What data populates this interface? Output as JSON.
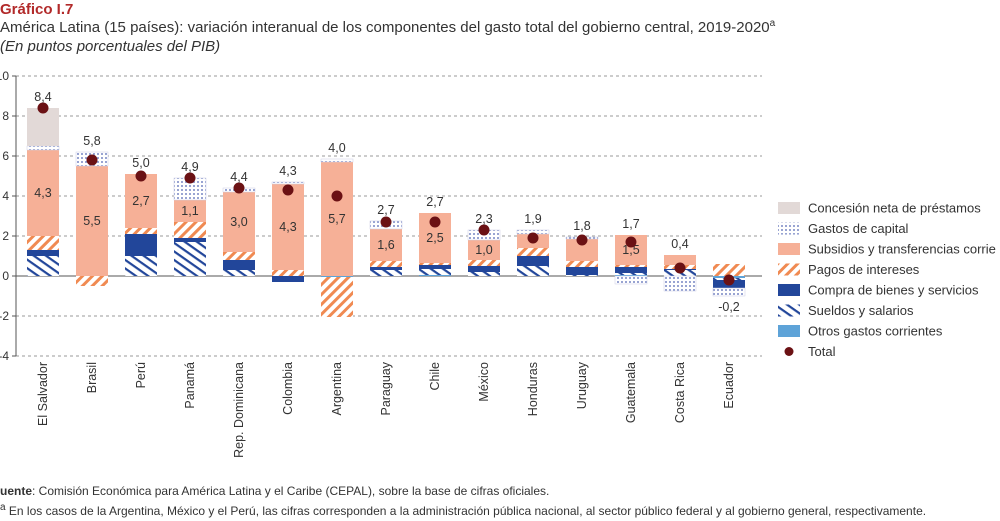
{
  "header": {
    "label": "Gráfico I.7",
    "subtitle": "América Latina (15 países): variación interanual de los componentes del gasto total del gobierno central, 2019-2020",
    "subtitle_sup": "a",
    "units": "(En puntos porcentuales del PIB)"
  },
  "footer": {
    "source_label": "uente",
    "source_text": ": Comisión Económica para América Latina y el Caribe (CEPAL), sobre la base de cifras oficiales.",
    "note": "En los casos de la Argentina, México y el Perú, las cifras corresponden a la administración pública nacional, al sector público federal y al gobierno general, respectivamente."
  },
  "colors": {
    "prestamos": "#e2d9d7",
    "capital_dots": "#6f7fc0",
    "subsidios": "#f6b097",
    "intereses": "#f08a52",
    "bienes": "#22469a",
    "sueldos": "#22469a",
    "otros": "#5ea3d8",
    "total": "#6b1114",
    "grid": "#9a9a9a",
    "axis": "#555555"
  },
  "chart_data": {
    "type": "bar",
    "stacked": true,
    "ylim": [
      -4,
      10
    ],
    "yticks": [
      -4,
      -2,
      0,
      2,
      4,
      6,
      8,
      10
    ],
    "grid": true,
    "legend_position": "right",
    "categories": [
      "El Salvador",
      "Brasil",
      "Perú",
      "Panamá",
      "Rep. Dominicana",
      "Colombia",
      "Argentina",
      "Paraguay",
      "Chile",
      "México",
      "Honduras",
      "Uruguay",
      "Guatemala",
      "Costa Rica",
      "Ecuador"
    ],
    "series": [
      {
        "key": "otros",
        "name": "Otros gastos corrientes",
        "values": [
          0.0,
          0.0,
          0.0,
          0.0,
          0.0,
          0.0,
          -0.05,
          0.0,
          0.05,
          0.0,
          0.0,
          0.0,
          0.05,
          0.0,
          -0.1
        ]
      },
      {
        "key": "sueldos",
        "name": "Sueldos y salarios",
        "values": [
          1.0,
          0.0,
          1.0,
          1.7,
          0.3,
          0.0,
          0.0,
          0.3,
          0.3,
          0.2,
          0.5,
          0.05,
          0.1,
          0.3,
          -0.1
        ]
      },
      {
        "key": "bienes",
        "name": "Compra de bienes y servicios",
        "values": [
          0.3,
          0.0,
          1.1,
          0.2,
          0.5,
          -0.3,
          0.0,
          0.15,
          0.2,
          0.3,
          0.5,
          0.4,
          0.3,
          0.05,
          -0.4
        ]
      },
      {
        "key": "intereses",
        "name": "Pagos de intereses",
        "values": [
          0.7,
          -0.5,
          0.3,
          0.8,
          0.4,
          0.3,
          -2.0,
          0.3,
          0.1,
          0.3,
          0.4,
          0.3,
          0.1,
          0.2,
          0.6
        ]
      },
      {
        "key": "subsidios",
        "name": "Subsidios y transferencias corrientes",
        "values": [
          4.3,
          5.5,
          2.7,
          1.1,
          3.0,
          4.3,
          5.7,
          1.6,
          2.5,
          1.0,
          0.7,
          1.1,
          1.5,
          0.5,
          0.0
        ]
      },
      {
        "key": "capital",
        "name": "Gastos de capital",
        "values": [
          0.2,
          0.7,
          0.0,
          1.1,
          0.2,
          0.1,
          0.15,
          0.4,
          0.0,
          0.5,
          0.2,
          0.1,
          -0.4,
          -0.75,
          -0.4
        ]
      },
      {
        "key": "prestamos",
        "name": "Concesión neta de préstamos",
        "values": [
          1.9,
          0.0,
          0.0,
          0.0,
          0.0,
          0.0,
          0.0,
          0.0,
          0.0,
          0.0,
          0.0,
          0.0,
          0.0,
          0.0,
          0.0
        ]
      }
    ],
    "total": {
      "name": "Total",
      "values": [
        8.4,
        5.8,
        5.0,
        4.9,
        4.4,
        4.3,
        4.0,
        2.7,
        2.7,
        2.3,
        1.9,
        1.8,
        1.7,
        0.4,
        -0.2
      ],
      "labels": [
        "8,4",
        "5,8",
        "5,0",
        "4,9",
        "4,4",
        "4,3",
        "4,0",
        "2,7",
        "2,7",
        "2,3",
        "1,9",
        "1,8",
        "1,7",
        "0,4",
        "-0,2"
      ]
    },
    "inner_labels": {
      "series": "subsidios",
      "values": [
        4.3,
        5.5,
        2.7,
        1.1,
        3.0,
        4.3,
        5.7,
        1.6,
        2.5,
        1.0,
        null,
        null,
        1.5,
        null,
        null
      ],
      "labels": [
        "4,3",
        "5,5",
        "2,7",
        "1,1",
        "3,0",
        "4,3",
        "5,7",
        "1,6",
        "2,5",
        "1,0",
        "",
        "",
        "1,5",
        "",
        ""
      ]
    },
    "legend_order": [
      "prestamos",
      "capital",
      "subsidios",
      "intereses",
      "bienes",
      "sueldos",
      "otros",
      "total"
    ],
    "legend_labels": {
      "prestamos": "Concesión neta de préstamos",
      "capital": "Gastos de capital",
      "subsidios": "Subsidios y transferencias corrie",
      "intereses": "Pagos de intereses",
      "bienes": "Compra de bienes y servicios",
      "sueldos": "Sueldos y salarios",
      "otros": "Otros gastos corrientes",
      "total": "Total"
    }
  }
}
